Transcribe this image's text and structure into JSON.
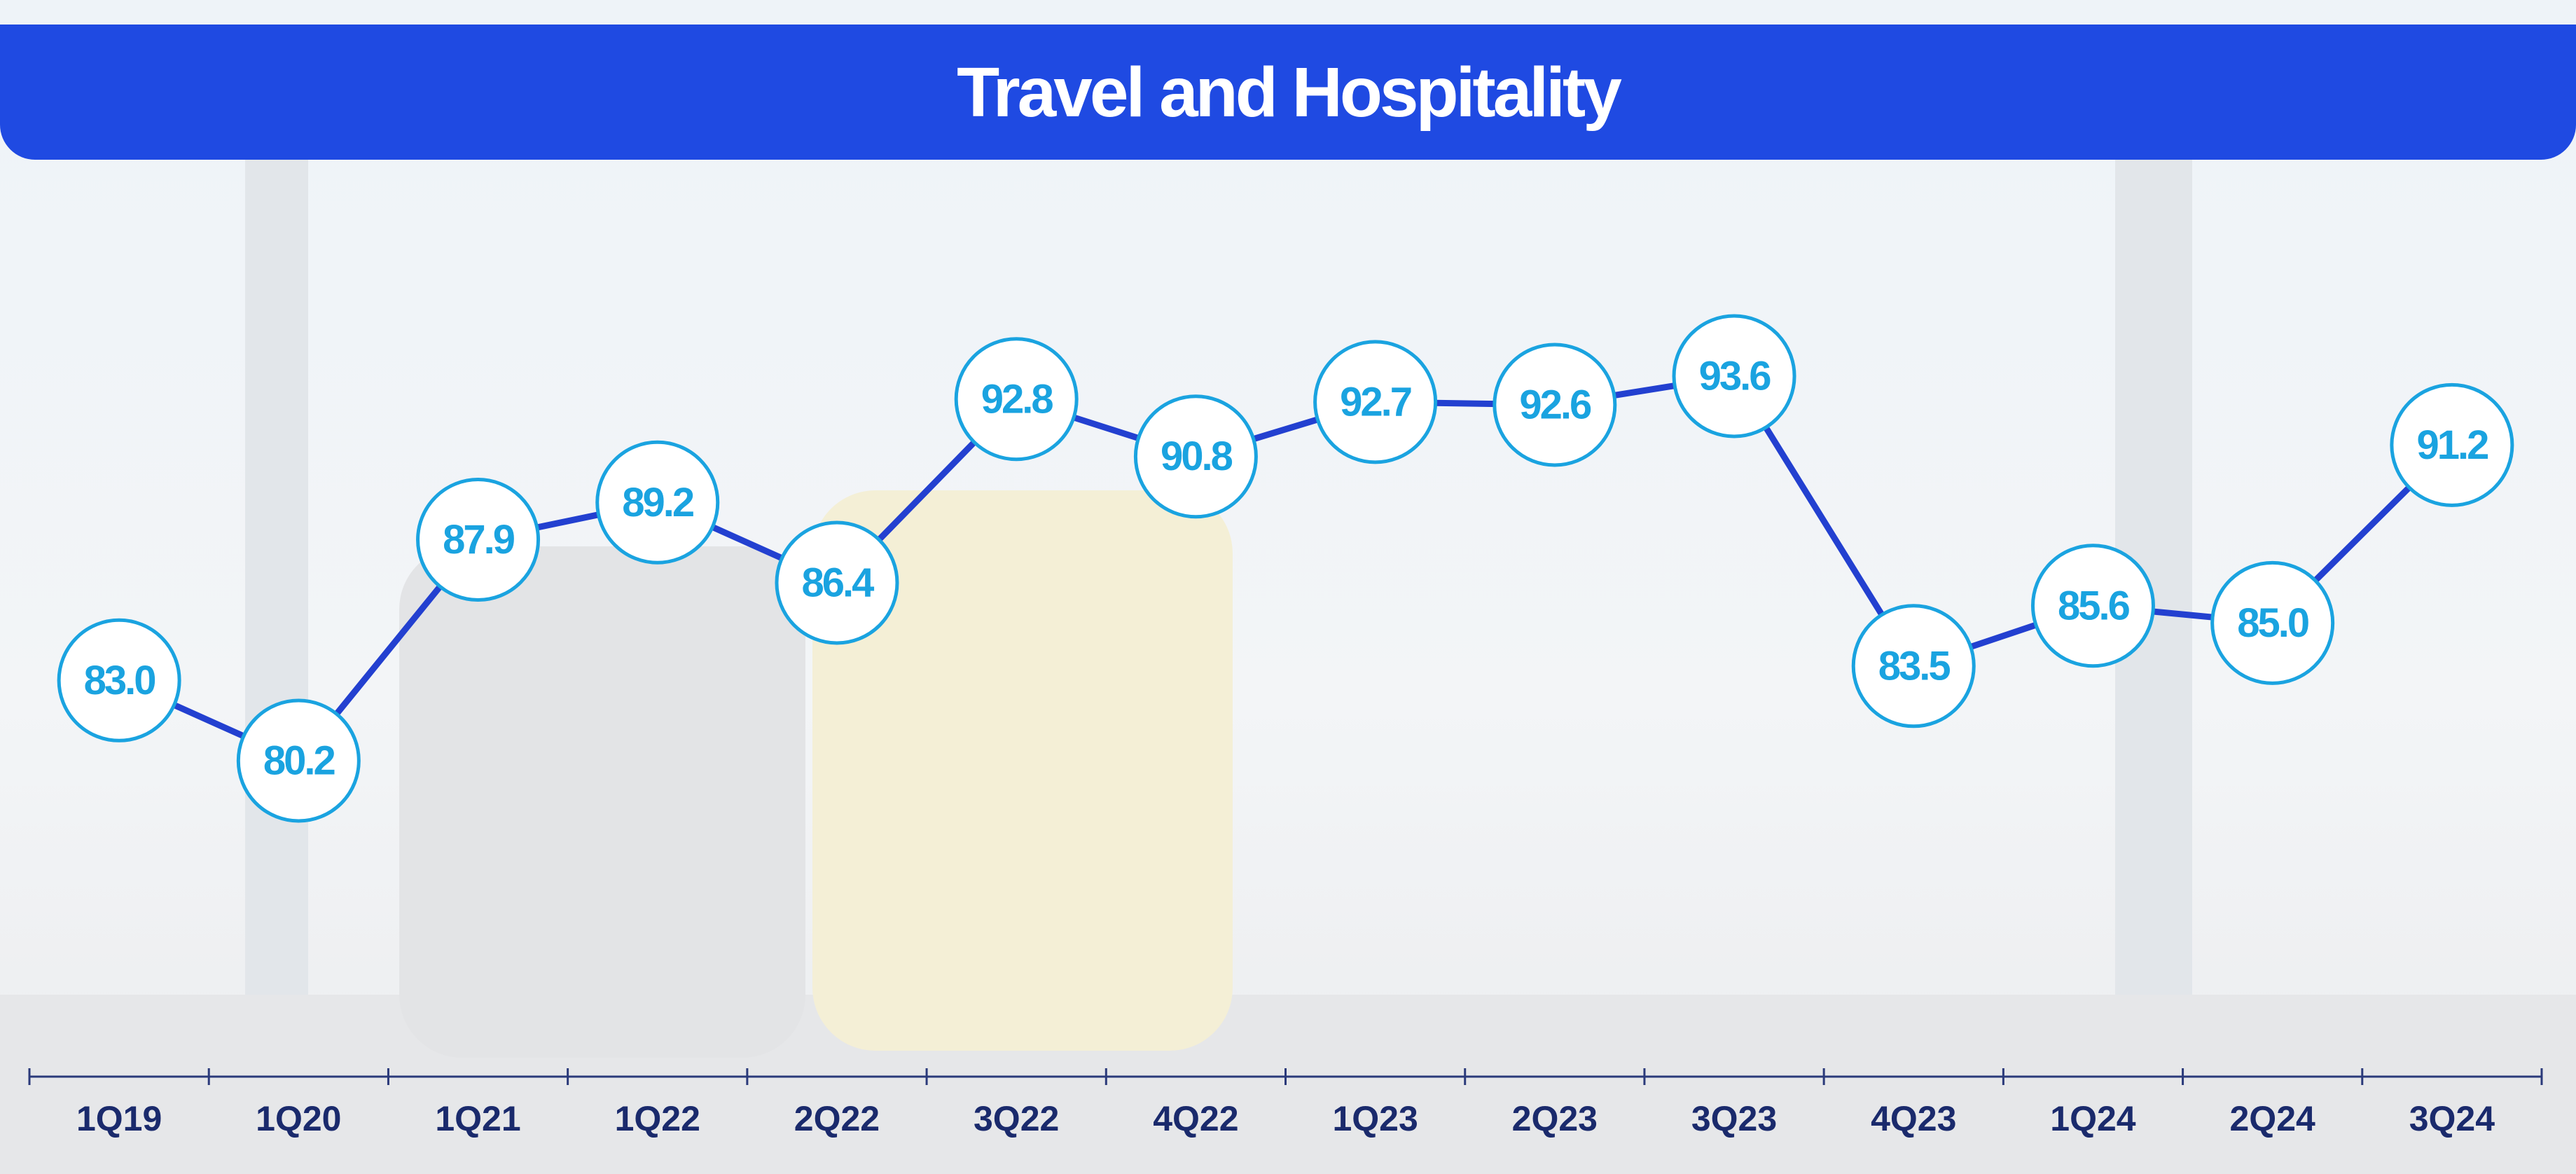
{
  "chart_data": {
    "type": "line",
    "title": "Travel and Hospitality",
    "categories": [
      "1Q19",
      "1Q20",
      "1Q21",
      "1Q22",
      "2Q22",
      "3Q22",
      "4Q22",
      "1Q23",
      "2Q23",
      "3Q23",
      "4Q23",
      "1Q24",
      "2Q24",
      "3Q24"
    ],
    "values": [
      83.0,
      80.2,
      87.9,
      89.2,
      86.4,
      92.8,
      90.8,
      92.7,
      92.6,
      93.6,
      83.5,
      85.6,
      85.0,
      91.2
    ],
    "value_labels": [
      "83.0",
      "80.2",
      "87.9",
      "89.2",
      "86.4",
      "92.8",
      "90.8",
      "92.7",
      "92.6",
      "93.6",
      "83.5",
      "85.6",
      "85.0",
      "91.2"
    ],
    "color": "#2340d0",
    "marker_color": "#1aa3e0"
  }
}
